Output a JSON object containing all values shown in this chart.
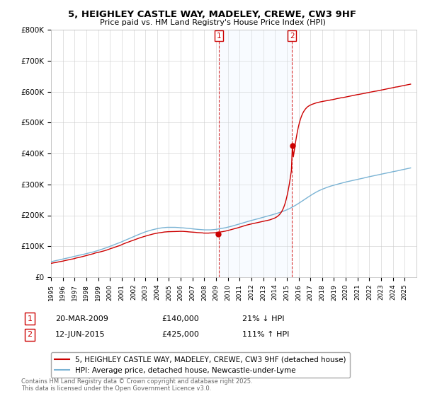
{
  "title": "5, HEIGHLEY CASTLE WAY, MADELEY, CREWE, CW3 9HF",
  "subtitle": "Price paid vs. HM Land Registry's House Price Index (HPI)",
  "hpi_label": "HPI: Average price, detached house, Newcastle-under-Lyme",
  "property_label": "5, HEIGHLEY CASTLE WAY, MADELEY, CREWE, CW3 9HF (detached house)",
  "sale1_date": "20-MAR-2009",
  "sale1_price": 140000,
  "sale1_hpi_text": "21% ↓ HPI",
  "sale1_year": 2009.22,
  "sale2_date": "12-JUN-2015",
  "sale2_price": 425000,
  "sale2_hpi_text": "111% ↑ HPI",
  "sale2_year": 2015.44,
  "hpi_color": "#7ab3d4",
  "property_color": "#cc0000",
  "shaded_color": "#ddeeff",
  "yticks": [
    0,
    100000,
    200000,
    300000,
    400000,
    500000,
    600000,
    700000,
    800000
  ],
  "ytick_labels": [
    "£0",
    "£100K",
    "£200K",
    "£300K",
    "£400K",
    "£500K",
    "£600K",
    "£700K",
    "£800K"
  ],
  "xmin": 1995,
  "xmax": 2026,
  "ymin": 0,
  "ymax": 800000,
  "footnote": "Contains HM Land Registry data © Crown copyright and database right 2025.\nThis data is licensed under the Open Government Licence v3.0.",
  "background_color": "#ffffff",
  "grid_color": "#cccccc"
}
